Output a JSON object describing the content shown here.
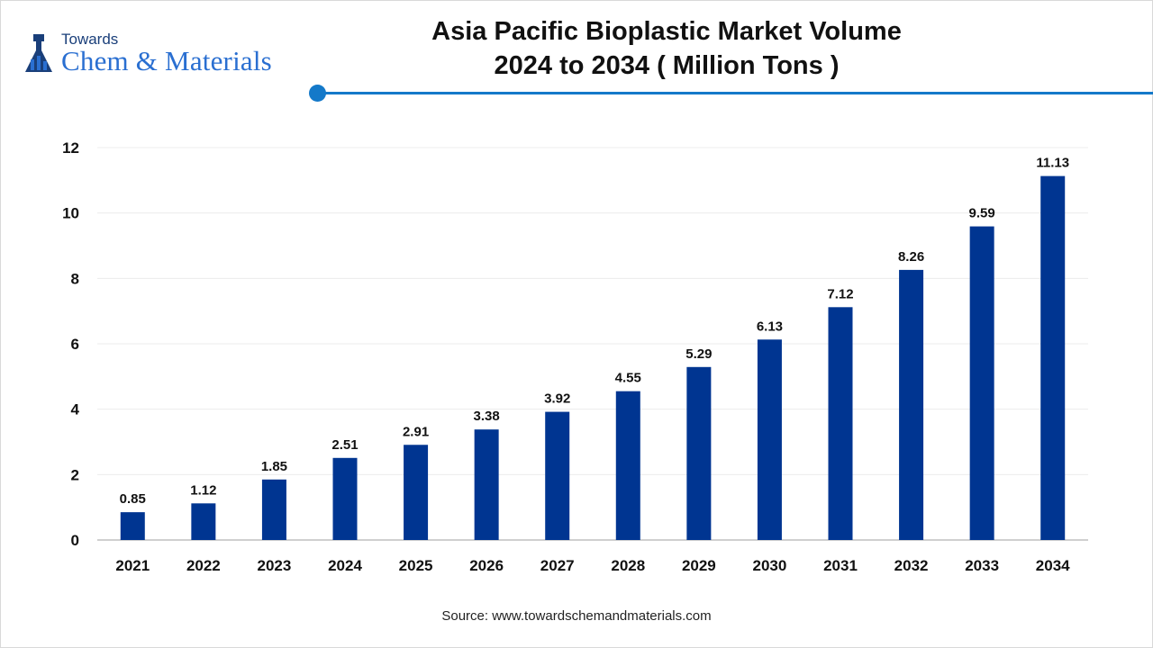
{
  "logo": {
    "top_text": "Towards",
    "main_text": "Chem & Materials"
  },
  "chart_data": {
    "type": "bar",
    "title": "Asia Pacific Bioplastic Market Volume",
    "subtitle": "2024 to 2034 ( Million Tons )",
    "categories": [
      "2021",
      "2022",
      "2023",
      "2024",
      "2025",
      "2026",
      "2027",
      "2028",
      "2029",
      "2030",
      "2031",
      "2032",
      "2033",
      "2034"
    ],
    "values": [
      0.85,
      1.12,
      1.85,
      2.51,
      2.91,
      3.38,
      3.92,
      4.55,
      5.29,
      6.13,
      7.12,
      8.26,
      9.59,
      11.13
    ],
    "value_labels": [
      "0.85",
      "1.12",
      "1.85",
      "2.51",
      "2.91",
      "3.38",
      "3.92",
      "4.55",
      "5.29",
      "6.13",
      "7.12",
      "8.26",
      "9.59",
      "11.13"
    ],
    "ylim": [
      0,
      12
    ],
    "yticks": [
      0,
      2,
      4,
      6,
      8,
      10,
      12
    ],
    "grid": true,
    "bar_color": "#003591",
    "xlabel": "",
    "ylabel": ""
  },
  "source": "Source: www.towardschemandmaterials.com",
  "colors": {
    "accent": "#1479c9",
    "logo_blue": "#2a6fd1",
    "logo_dark": "#1a3f7a"
  }
}
